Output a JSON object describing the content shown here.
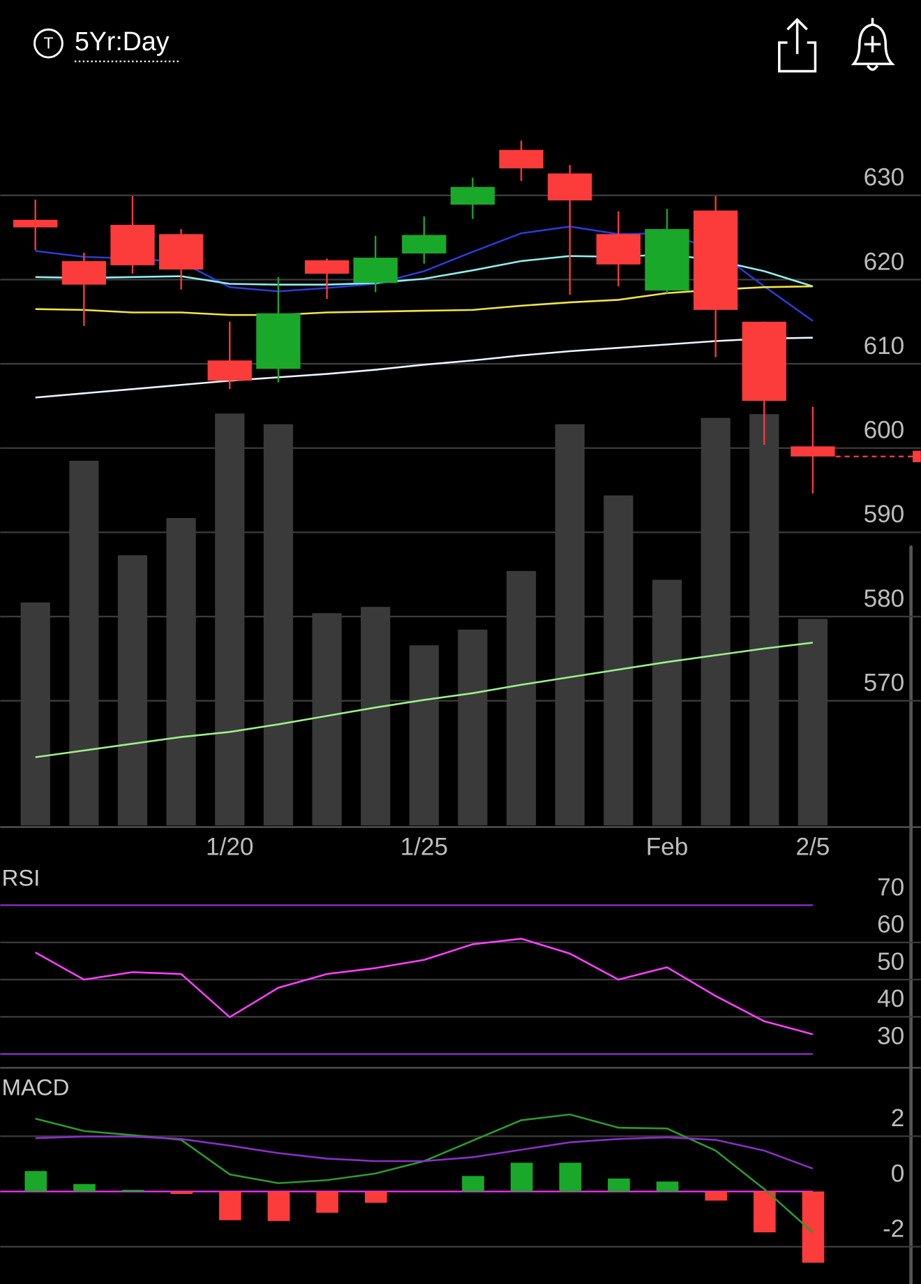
{
  "header": {
    "icon_letter": "T",
    "range_label": "5Yr:Day"
  },
  "chart_data": [
    {
      "type": "candlestick",
      "categories": [
        null,
        null,
        null,
        null,
        "1/20",
        null,
        null,
        null,
        "1/25",
        null,
        null,
        null,
        null,
        "Feb",
        null,
        null,
        "2/5"
      ],
      "open": [
        627.1,
        622.2,
        626.5,
        625.4,
        610.4,
        609.4,
        622.3,
        619.6,
        623.1,
        628.9,
        635.4,
        632.6,
        625.4,
        618.7,
        628.2,
        615.0,
        600.2
      ],
      "high": [
        629.5,
        623.2,
        629.9,
        626.0,
        615.0,
        620.3,
        622.5,
        625.2,
        627.5,
        632.1,
        636.5,
        633.6,
        628.1,
        628.4,
        629.9,
        615.0,
        604.9
      ],
      "low": [
        623.5,
        614.5,
        620.7,
        618.8,
        607.0,
        607.8,
        617.7,
        618.5,
        621.9,
        627.2,
        631.7,
        618.2,
        619.2,
        618.4,
        610.8,
        600.4,
        594.6
      ],
      "close": [
        626.2,
        619.4,
        621.7,
        621.2,
        608.0,
        616.0,
        620.7,
        622.6,
        625.3,
        631.0,
        633.2,
        629.4,
        621.8,
        626.0,
        616.4,
        605.6,
        599.0
      ],
      "up_color": "#1aa82a",
      "down_color": "#fc3b3b",
      "overlays": [
        {
          "color": "#2b3bd6",
          "values": [
            623.4,
            622.7,
            622.5,
            622.1,
            619.1,
            618.6,
            619.0,
            619.5,
            621.0,
            623.3,
            625.5,
            626.3,
            625.4,
            625.5,
            623.5,
            619.2,
            615.1
          ]
        },
        {
          "color": "#8ff0f0",
          "values": [
            620.3,
            620.2,
            620.3,
            620.4,
            619.5,
            619.4,
            619.4,
            619.6,
            620.1,
            621.1,
            622.2,
            622.8,
            622.7,
            623.0,
            622.3,
            621.0,
            619.2
          ]
        },
        {
          "color": "#f2e644",
          "values": [
            616.5,
            616.4,
            616.1,
            616.1,
            615.8,
            615.8,
            616.1,
            616.2,
            616.3,
            616.4,
            616.9,
            617.3,
            617.6,
            618.4,
            618.8,
            619.1,
            619.2
          ]
        },
        {
          "color": "#eef6ff",
          "values": [
            606.0,
            606.5,
            607.0,
            607.5,
            608.0,
            608.4,
            608.8,
            609.3,
            609.9,
            610.4,
            611.0,
            611.5,
            611.9,
            612.3,
            612.7,
            613.0,
            613.1
          ]
        },
        {
          "color": "#9cf08a",
          "values": [
            563.3,
            564.1,
            564.9,
            565.7,
            566.3,
            567.2,
            568.2,
            569.2,
            570.1,
            570.9,
            571.9,
            572.8,
            573.7,
            574.6,
            575.4,
            576.2,
            576.9
          ]
        }
      ],
      "volume": {
        "color": "#3a3a3a",
        "values": [
          35.4,
          57.9,
          42.9,
          48.8,
          65.4,
          63.7,
          33.7,
          34.7,
          28.6,
          31.1,
          40.4,
          63.7,
          52.4,
          39.0,
          64.7,
          65.3,
          32.8
        ]
      },
      "ylim": [
        555.2,
        642.5
      ],
      "yticks": [
        570,
        580,
        590,
        600,
        610,
        620,
        630
      ],
      "grid": true
    },
    {
      "type": "line",
      "title": "RSI",
      "values": [
        57.3,
        50.0,
        52.0,
        51.5,
        39.9,
        47.8,
        51.5,
        53.1,
        55.3,
        59.5,
        61.0,
        57.0,
        50.0,
        53.3,
        45.6,
        38.8,
        35.3
      ],
      "color": "#ff40ff",
      "band_color": "#8a2fc8",
      "ylim": [
        26.5,
        80
      ],
      "yticks": [
        30,
        40,
        50,
        60,
        70
      ],
      "grid": true
    },
    {
      "type": "macd",
      "title": "MACD",
      "histogram": [
        0.74,
        0.27,
        0.06,
        -0.09,
        -1.04,
        -1.07,
        -0.77,
        -0.41,
        0,
        0.56,
        1.04,
        1.04,
        0.47,
        0.36,
        -0.33,
        -1.48,
        -2.58
      ],
      "macd": [
        2.64,
        2.19,
        2.04,
        1.87,
        0.62,
        0.3,
        0.41,
        0.65,
        1.1,
        1.84,
        2.58,
        2.79,
        2.31,
        2.28,
        1.48,
        0.09,
        -1.48
      ],
      "signal": [
        1.93,
        1.99,
        1.99,
        1.9,
        1.66,
        1.39,
        1.19,
        1.1,
        1.1,
        1.24,
        1.51,
        1.78,
        1.9,
        1.96,
        1.87,
        1.48,
        0.83
      ],
      "macd_color": "#2e9a2e",
      "signal_color": "#8a2fc8",
      "zero_color": "#ff30ff",
      "ylim": [
        -3.35,
        4.3
      ],
      "yticks": [
        -2,
        0,
        2
      ],
      "grid": true
    }
  ]
}
